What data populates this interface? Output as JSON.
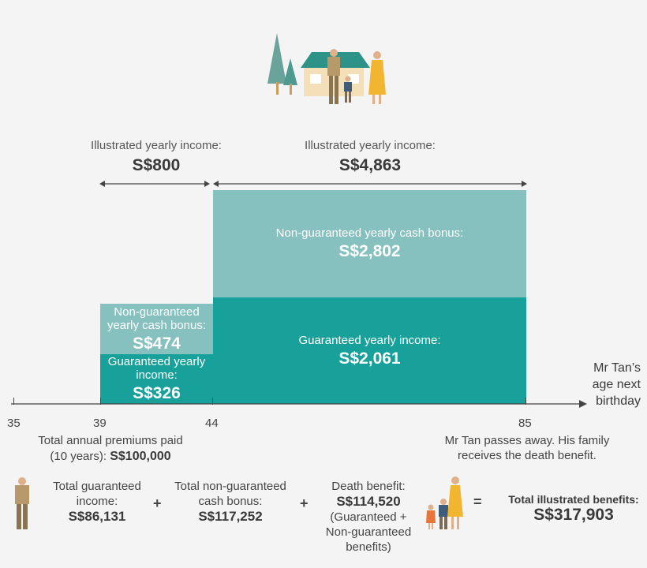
{
  "colors": {
    "guaranteed": "#18a19b",
    "non_guaranteed": "#86c0bf",
    "text": "#444444",
    "orange": "#f2b530",
    "body_skin": "#c7a47b"
  },
  "header_icon": "family-house-trees-illustration",
  "period1": {
    "caption": "Illustrated yearly income:",
    "value": "S$800",
    "ng_label": "Non-guaranteed yearly cash bonus:",
    "ng_value": "S$474",
    "g_label": "Guaranteed yearly income:",
    "g_value": "S$326"
  },
  "period2": {
    "caption": "Illustrated yearly income:",
    "value": "S$4,863",
    "ng_label": "Non-guaranteed yearly cash bonus:",
    "ng_value": "S$2,802",
    "g_label": "Guaranteed yearly income:",
    "g_value": "S$2,061"
  },
  "axis": {
    "title": "Mr Tan’s age next birthday",
    "ticks": [
      "35",
      "39",
      "44",
      "85"
    ]
  },
  "notes": {
    "premiums_label": "Total annual premiums paid (10 years):",
    "premiums_value": "S$100,000",
    "death_note": "Mr Tan passes away. His family receives the death benefit."
  },
  "summary": {
    "guaranteed_label": "Total guaranteed income:",
    "guaranteed_value": "S$86,131",
    "nonguaranteed_label": "Total non-guaranteed cash bonus:",
    "nonguaranteed_value": "S$117,252",
    "death_label": "Death benefit:",
    "death_value": "S$114,520",
    "death_sub": "(Guaranteed + Non-guaranteed benefits)",
    "total_label": "Total illustrated benefits:",
    "total_value": "S$317,903",
    "plus": "+",
    "equals": "="
  }
}
